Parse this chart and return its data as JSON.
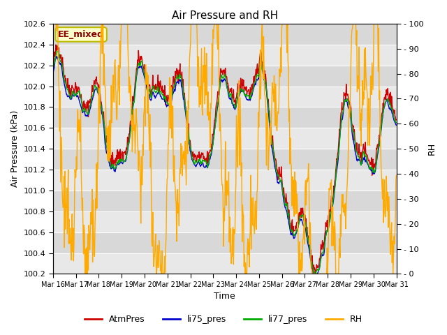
{
  "title": "Air Pressure and RH",
  "xlabel": "Time",
  "ylabel_left": "Air Pressure (kPa)",
  "ylabel_right": "RH",
  "ylim_left": [
    100.2,
    102.6
  ],
  "ylim_right": [
    0,
    100
  ],
  "yticks_left": [
    100.2,
    100.4,
    100.6,
    100.8,
    101.0,
    101.2,
    101.4,
    101.6,
    101.8,
    102.0,
    102.2,
    102.4,
    102.6
  ],
  "yticks_right": [
    0,
    10,
    20,
    30,
    40,
    50,
    60,
    70,
    80,
    90,
    100
  ],
  "xtick_labels": [
    "Mar 16",
    "Mar 17",
    "Mar 18",
    "Mar 19",
    "Mar 20",
    "Mar 21",
    "Mar 22",
    "Mar 23",
    "Mar 24",
    "Mar 25",
    "Mar 26",
    "Mar 27",
    "Mar 28",
    "Mar 29",
    "Mar 30",
    "Mar 31"
  ],
  "legend_labels": [
    "AtmPres",
    "li75_pres",
    "li77_pres",
    "RH"
  ],
  "colors": {
    "AtmPres": "#cc0000",
    "li75_pres": "#0000cc",
    "li77_pres": "#00aa00",
    "RH": "#ffaa00"
  },
  "annotation_text": "EE_mixed",
  "annotation_bg": "#ffffcc",
  "annotation_border": "#bbbb00",
  "bg_color": "#ffffff",
  "plot_bg_light": "#e8e8e8",
  "plot_bg_dark": "#d0d0d0",
  "grid_color": "#c8c8c8",
  "linewidth": 1.0,
  "n_points": 720,
  "band_colors": [
    "#e8e8e8",
    "#d8d8d8"
  ]
}
